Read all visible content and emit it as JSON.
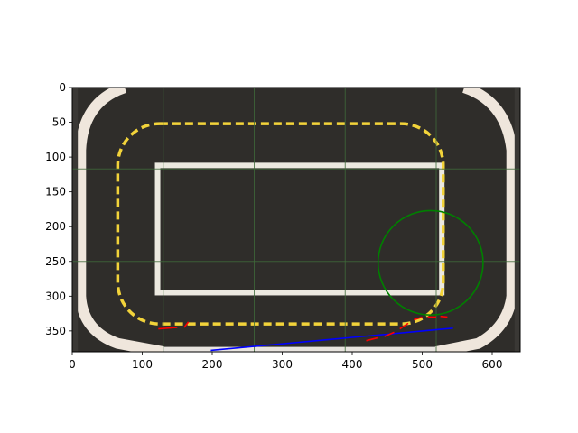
{
  "chart_data": {
    "type": "scatter",
    "title": "",
    "xlabel": "",
    "ylabel": "",
    "xlim": [
      0,
      640
    ],
    "ylim": [
      380,
      0
    ],
    "x_ticks": [
      0,
      100,
      200,
      300,
      400,
      500,
      600
    ],
    "y_ticks": [
      0,
      50,
      100,
      150,
      200,
      250,
      300,
      350
    ],
    "background": "road-mat-photo",
    "grid_lines_x": [
      130,
      260,
      390,
      520
    ],
    "grid_lines_y": [
      117,
      250
    ],
    "yellow_loop": {
      "x0": 65,
      "y0": 52,
      "x1": 530,
      "y1": 340,
      "corner_radius": 60
    },
    "white_rect": {
      "x0": 122,
      "y0": 112,
      "x1": 528,
      "y1": 295
    },
    "green_circle": {
      "cx": 512,
      "cy": 252,
      "r": 75
    },
    "blue_line": {
      "x": [
        198,
        544
      ],
      "y": [
        378,
        346
      ]
    },
    "red_segments": [
      [
        [
          123,
          347
        ],
        [
          150,
          345
        ]
      ],
      [
        [
          160,
          345
        ],
        [
          166,
          337
        ]
      ],
      [
        [
          420,
          364
        ],
        [
          436,
          360
        ]
      ],
      [
        [
          446,
          358
        ],
        [
          460,
          352
        ]
      ],
      [
        [
          468,
          347
        ],
        [
          480,
          339
        ]
      ],
      [
        [
          488,
          334
        ],
        [
          500,
          330
        ]
      ],
      [
        [
          508,
          330
        ],
        [
          520,
          330
        ]
      ],
      [
        [
          526,
          329
        ],
        [
          536,
          330
        ]
      ]
    ],
    "colors": {
      "circle": "#008000",
      "line": "#0000ff",
      "segments": "#ff0000",
      "dash": "#f2d33a"
    }
  }
}
